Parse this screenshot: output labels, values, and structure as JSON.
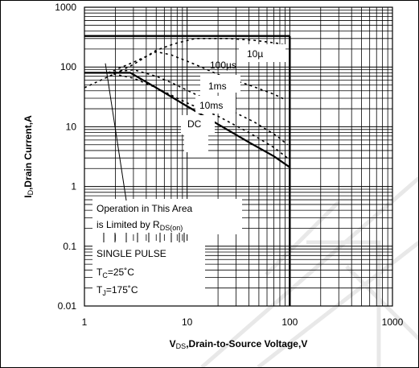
{
  "chart_data": {
    "type": "line",
    "title": "",
    "xlabel": {
      "main": "V",
      "sub": "DS",
      "rest": ",Drain-to-Source Voltage,V"
    },
    "ylabel": {
      "main": "I",
      "sub": "D",
      "rest": ",Drain Current,A"
    },
    "x_scale": "log",
    "y_scale": "log",
    "xlim": [
      1,
      1000
    ],
    "ylim": [
      0.01,
      1000
    ],
    "x_ticks": [
      "1",
      "10",
      "100",
      "1000"
    ],
    "y_ticks": [
      "0.01",
      "0.1",
      "1",
      "10",
      "100",
      "1000"
    ],
    "grid": true,
    "series": [
      {
        "name": "10µ",
        "style": "dashed",
        "x": [
          1.0,
          2.0,
          3.0,
          5.0,
          7.5,
          12,
          25,
          45,
          75,
          92
        ],
        "y": [
          45,
          78,
          110,
          190,
          245,
          300,
          300,
          280,
          250,
          230
        ]
      },
      {
        "name": "100µs",
        "style": "dashed",
        "x": [
          1.7,
          3.0,
          5.0,
          7.0,
          12,
          22,
          40,
          70,
          92
        ],
        "y": [
          80,
          120,
          180,
          160,
          110,
          70,
          50,
          35,
          28
        ]
      },
      {
        "name": "1ms",
        "style": "dashed",
        "x": [
          1.7,
          3.0,
          5.0,
          7.0,
          12,
          22,
          45,
          75,
          95
        ],
        "y": [
          80,
          90,
          70,
          55,
          35,
          22,
          12,
          7,
          5
        ]
      },
      {
        "name": "10ms",
        "style": "dashed",
        "x": [
          1.7,
          3.0,
          5.0,
          10,
          20,
          40,
          70,
          95
        ],
        "y": [
          80,
          65,
          45,
          25,
          15,
          8,
          4.5,
          3
        ]
      },
      {
        "name": "DC",
        "style": "solid",
        "x": [
          1.0,
          2.8,
          5.0,
          10,
          20,
          40,
          70,
          100
        ],
        "y": [
          80,
          80,
          45,
          22,
          11,
          5.5,
          3.2,
          2.1
        ]
      },
      {
        "name": "",
        "style": "solid",
        "x": [
          1.0,
          100
        ],
        "y": [
          330,
          330
        ]
      },
      {
        "name": "",
        "style": "solid",
        "x": [
          100,
          100
        ],
        "y": [
          0.01,
          330
        ]
      }
    ],
    "annotations": {
      "us10": "10µ",
      "us100": "100µs",
      "ms1": "1ms",
      "ms10": "10ms",
      "dc": "DC",
      "area_line1": "Operation in This Area",
      "area_line2_prefix": "is Limited by R",
      "area_line2_sub": "DS(on)",
      "single_pulse": "SINGLE PULSE",
      "tc_main": "T",
      "tc_sub": "C",
      "tc_val": "=25˚C",
      "tj_main": "T",
      "tj_sub": "J",
      "tj_val": "=175˚C"
    }
  }
}
